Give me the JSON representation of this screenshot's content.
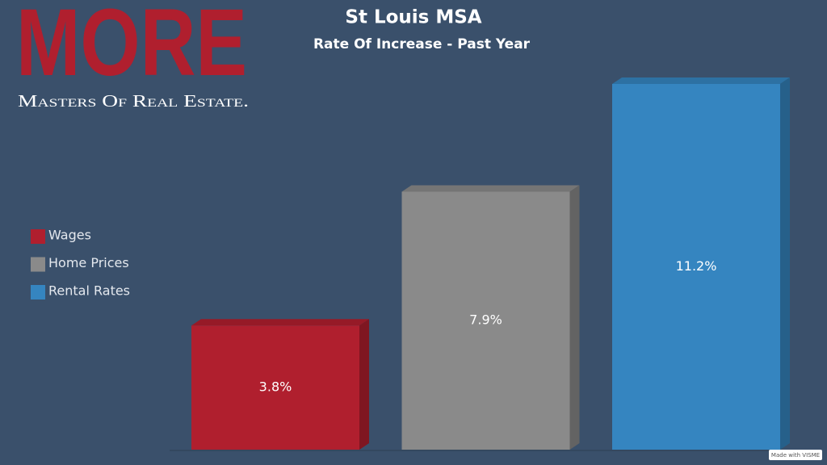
{
  "logo": {
    "title": "MORE",
    "tagline": "Masters Of Real Estate."
  },
  "badge": "Made with VISME",
  "chart_data": {
    "type": "bar",
    "title": "St Louis MSA",
    "subtitle": "Rate Of Increase - Past Year",
    "series": [
      {
        "name": "Wages",
        "color": "#b01f2e",
        "values": [
          3.8
        ],
        "value_labels": [
          "3.8%"
        ]
      },
      {
        "name": "Home Prices",
        "color": "#8a8a8a",
        "values": [
          7.9
        ],
        "value_labels": [
          "7.9%"
        ]
      },
      {
        "name": "Rental Rates",
        "color": "#3585c0",
        "values": [
          11.2
        ],
        "value_labels": [
          "11.2%"
        ]
      }
    ],
    "legend": "left"
  }
}
